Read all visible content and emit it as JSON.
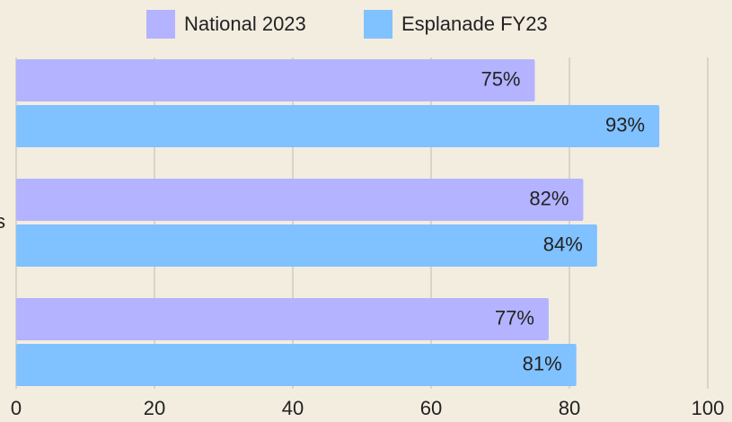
{
  "chart_data": {
    "type": "bar",
    "orientation": "horizontal",
    "categories": [
      null,
      "s",
      null
    ],
    "series": [
      {
        "name": "National 2023",
        "color": "#b3b3ff",
        "values": [
          75,
          82,
          77
        ],
        "value_labels": [
          "75%",
          "82%",
          "77%"
        ]
      },
      {
        "name": "Esplanade FY23",
        "color": "#80c1ff",
        "values": [
          93,
          84,
          81
        ],
        "value_labels": [
          "93%",
          "84%",
          "81%"
        ]
      }
    ],
    "xlim": [
      0,
      100
    ],
    "xticks": [
      0,
      20,
      40,
      60,
      80,
      100
    ],
    "grid": true,
    "legend": "top"
  }
}
